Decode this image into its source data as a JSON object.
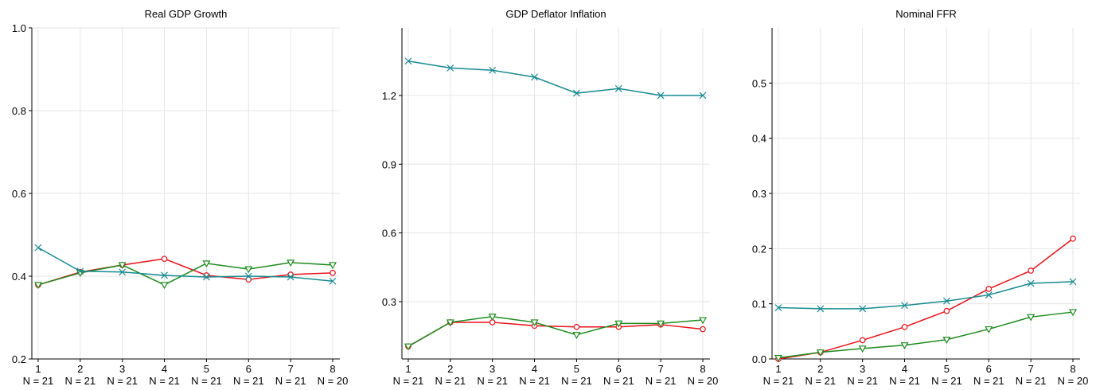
{
  "chart_data": [
    {
      "type": "line",
      "title": "Real GDP Growth",
      "x": [
        1,
        2,
        3,
        4,
        5,
        6,
        7,
        8
      ],
      "xticks": [
        1,
        2,
        3,
        4,
        5,
        6,
        7,
        8
      ],
      "xlim": [
        0.85,
        8.17
      ],
      "xsublabels": [
        "N = 21",
        "N = 21",
        "N = 21",
        "N = 21",
        "N = 21",
        "N = 21",
        "N = 21",
        "N = 20"
      ],
      "ylim": [
        0.2,
        1.0
      ],
      "yticks": [
        0.2,
        0.4,
        0.6,
        0.8,
        {
          "value": 1,
          "label": "1.0"
        }
      ],
      "grid": true,
      "series": [
        {
          "color": "#e8101a",
          "marker": "o",
          "values": [
            0.379,
            0.41,
            0.427,
            0.442,
            0.402,
            0.392,
            0.404,
            0.408
          ]
        },
        {
          "color": "#1e8a1e",
          "marker": "v",
          "values": [
            0.379,
            0.408,
            0.427,
            0.379,
            0.431,
            0.417,
            0.433,
            0.427
          ]
        },
        {
          "color": "#178a91",
          "marker": "x",
          "values": [
            0.469,
            0.412,
            0.41,
            0.402,
            0.398,
            0.4,
            0.398,
            0.388
          ]
        }
      ]
    },
    {
      "type": "line",
      "title": "GDP Deflator Inflation",
      "x": [
        1,
        2,
        3,
        4,
        5,
        6,
        7,
        8
      ],
      "xticks": [
        1,
        2,
        3,
        4,
        5,
        6,
        7,
        8
      ],
      "xlim": [
        0.85,
        8.17
      ],
      "xsublabels": [
        "N = 21",
        "N = 21",
        "N = 21",
        "N = 21",
        "N = 21",
        "N = 21",
        "N = 21",
        "N = 20"
      ],
      "ylim": [
        0.05,
        1.495
      ],
      "yticks": [
        0.3,
        0.6,
        0.9,
        1.2
      ],
      "grid": true,
      "series": [
        {
          "color": "#e8101a",
          "marker": "o",
          "values": [
            0.105,
            0.21,
            0.21,
            0.195,
            0.19,
            0.19,
            0.2,
            0.18
          ]
        },
        {
          "color": "#1e8a1e",
          "marker": "v",
          "values": [
            0.105,
            0.21,
            0.235,
            0.21,
            0.155,
            0.205,
            0.205,
            0.22
          ]
        },
        {
          "color": "#178a91",
          "marker": "x",
          "values": [
            1.35,
            1.32,
            1.31,
            1.28,
            1.21,
            1.23,
            1.2,
            1.2
          ]
        }
      ]
    },
    {
      "type": "line",
      "title": "Nominal FFR",
      "x": [
        1,
        2,
        3,
        4,
        5,
        6,
        7,
        8
      ],
      "xticks": [
        1,
        2,
        3,
        4,
        5,
        6,
        7,
        8
      ],
      "xlim": [
        0.85,
        8.17
      ],
      "xsublabels": [
        "N = 21",
        "N = 21",
        "N = 21",
        "N = 21",
        "N = 21",
        "N = 21",
        "N = 21",
        "N = 20"
      ],
      "ylim": [
        0,
        0.6
      ],
      "yticks": [
        {
          "value": 0,
          "label": "0.0"
        },
        0.1,
        0.2,
        0.3,
        0.4,
        0.5
      ],
      "grid": true,
      "series": [
        {
          "color": "#e8101a",
          "marker": "o",
          "values": [
            0,
            0.012,
            0.034,
            0.058,
            0.087,
            0.127,
            0.16,
            0.218
          ]
        },
        {
          "color": "#1e8a1e",
          "marker": "v",
          "values": [
            0.002,
            0.012,
            0.019,
            0.025,
            0.035,
            0.054,
            0.076,
            0.085
          ]
        },
        {
          "color": "#178a91",
          "marker": "x",
          "values": [
            0.093,
            0.091,
            0.091,
            0.097,
            0.105,
            0.116,
            0.137,
            0.14
          ]
        }
      ]
    }
  ]
}
